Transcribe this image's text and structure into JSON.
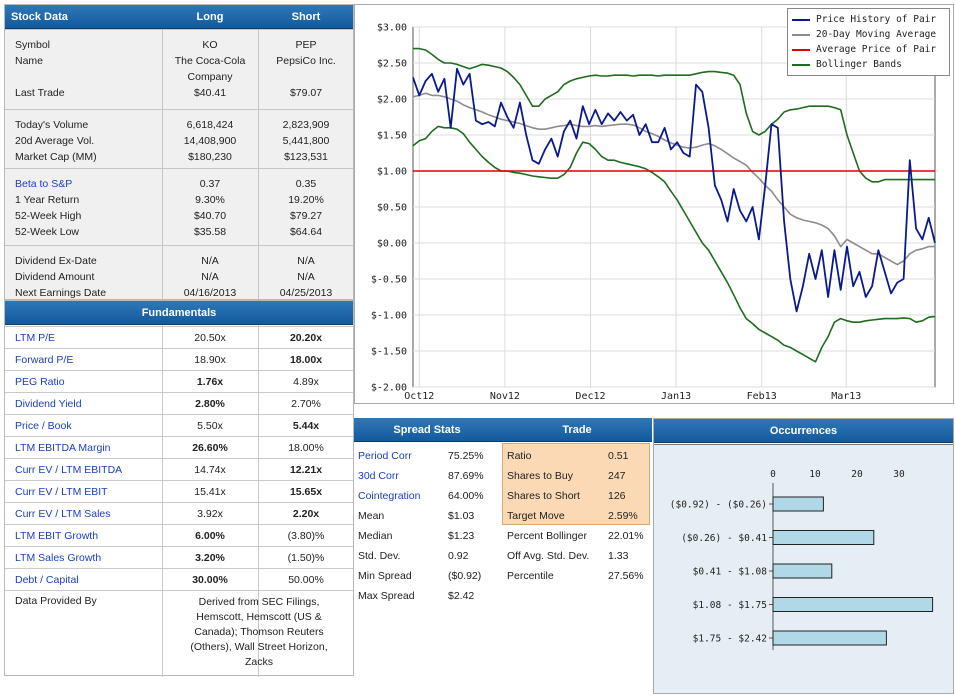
{
  "stock_data": {
    "header": {
      "title": "Stock Data",
      "long": "Long",
      "short": "Short"
    },
    "groups": [
      {
        "rows": [
          {
            "label": "Symbol",
            "long": "KO",
            "short": "PEP",
            "link": false
          },
          {
            "label": "Name",
            "long": "The Coca-Cola",
            "short": "PepsiCo Inc.",
            "link": false
          },
          {
            "label": "",
            "long": "Company",
            "short": "",
            "link": false
          },
          {
            "label": "Last Trade",
            "long": "$40.41",
            "short": "$79.07",
            "link": false
          }
        ]
      },
      {
        "rows": [
          {
            "label": "Today's Volume",
            "long": "6,618,424",
            "short": "2,823,909",
            "link": false
          },
          {
            "label": "20d Average Vol.",
            "long": "14,408,900",
            "short": "5,441,800",
            "link": false
          },
          {
            "label": "Market Cap (MM)",
            "long": "$180,230",
            "short": "$123,531",
            "link": false
          }
        ]
      },
      {
        "rows": [
          {
            "label": "Beta to S&P",
            "long": "0.37",
            "short": "0.35",
            "link": true
          },
          {
            "label": "1 Year Return",
            "long": "9.30%",
            "short": "19.20%",
            "link": false
          },
          {
            "label": "52-Week High",
            "long": "$40.70",
            "short": "$79.27",
            "link": false
          },
          {
            "label": "52-Week Low",
            "long": "$35.58",
            "short": "$64.64",
            "link": false
          }
        ]
      },
      {
        "rows": [
          {
            "label": "Dividend Ex-Date",
            "long": "N/A",
            "short": "N/A",
            "link": false
          },
          {
            "label": "Dividend Amount",
            "long": "N/A",
            "short": "N/A",
            "link": false
          },
          {
            "label": "Next Earnings Date",
            "long": "04/16/2013",
            "short": "04/25/2013",
            "link": false
          }
        ]
      }
    ]
  },
  "fundamentals": {
    "title": "Fundamentals",
    "rows": [
      {
        "label": "LTM P/E",
        "long": "20.50x",
        "short": "20.20x",
        "bold": "short"
      },
      {
        "label": "Forward P/E",
        "long": "18.90x",
        "short": "18.00x",
        "bold": "short"
      },
      {
        "label": "PEG Ratio",
        "long": "1.76x",
        "short": "4.89x",
        "bold": "long"
      },
      {
        "label": "Dividend Yield",
        "long": "2.80%",
        "short": "2.70%",
        "bold": "long"
      },
      {
        "label": "Price / Book",
        "long": "5.50x",
        "short": "5.44x",
        "bold": "short"
      },
      {
        "label": "LTM EBITDA Margin",
        "long": "26.60%",
        "short": "18.00%",
        "bold": "long"
      },
      {
        "label": "Curr EV / LTM EBITDA",
        "long": "14.74x",
        "short": "12.21x",
        "bold": "short"
      },
      {
        "label": "Curr EV / LTM EBIT",
        "long": "15.41x",
        "short": "15.65x",
        "bold": "short"
      },
      {
        "label": "Curr EV / LTM Sales",
        "long": "3.92x",
        "short": "2.20x",
        "bold": "short"
      },
      {
        "label": "LTM EBIT Growth",
        "long": "6.00%",
        "short": "(3.80)%",
        "bold": "long"
      },
      {
        "label": "LTM Sales Growth",
        "long": "3.20%",
        "short": "(1.50)%",
        "bold": "long"
      },
      {
        "label": "Debt / Capital",
        "long": "30.00%",
        "short": "50.00%",
        "bold": "long"
      }
    ],
    "provided_label": "Data Provided By",
    "provided_lines": [
      "Derived from SEC Filings,",
      "Hemscott, Hemscott (US &",
      "Canada); Thomson Reuters",
      "(Others), Wall Street Horizon,",
      "Zacks"
    ]
  },
  "chart_data": [
    {
      "type": "line",
      "x_ticks": [
        "Oct12",
        "Nov12",
        "Dec12",
        "Jan13",
        "Feb13",
        "Mar13"
      ],
      "y_ticks": [
        "$3.00",
        "$2.50",
        "$2.00",
        "$1.50",
        "$1.00",
        "$0.50",
        "$0.00",
        "$-0.50",
        "$-1.00",
        "$-1.50",
        "$-2.00"
      ],
      "ylim": [
        -2.0,
        3.0
      ],
      "grid": true,
      "legend_position": "top-right",
      "series": [
        {
          "name": "Price History of Pair",
          "color": "#0a1a8c",
          "values": [
            2.3,
            2.05,
            2.25,
            2.35,
            2.1,
            2.28,
            1.6,
            2.42,
            2.2,
            2.35,
            1.7,
            1.65,
            1.68,
            1.62,
            1.95,
            1.75,
            1.6,
            1.95,
            1.5,
            1.15,
            1.1,
            1.3,
            1.45,
            1.2,
            1.55,
            1.7,
            1.45,
            1.9,
            1.65,
            1.85,
            1.65,
            1.8,
            1.7,
            1.82,
            1.7,
            1.78,
            1.5,
            1.65,
            1.4,
            1.4,
            1.6,
            1.3,
            1.4,
            1.25,
            1.2,
            2.2,
            2.1,
            1.6,
            0.8,
            0.6,
            0.3,
            0.75,
            0.45,
            0.3,
            0.5,
            0.05,
            0.8,
            1.65,
            1.6,
            0.3,
            -0.5,
            -0.95,
            -0.6,
            -0.15,
            -0.5,
            -0.1,
            -0.75,
            -0.1,
            -0.65,
            -0.05,
            -0.6,
            -0.4,
            -0.75,
            -0.6,
            -0.1,
            -0.4,
            -0.7,
            -0.55,
            -0.5,
            1.15,
            0.2,
            0.05,
            0.35,
            0.0
          ]
        },
        {
          "name": "20-Day Moving Average",
          "color": "#8c8c8c",
          "values": [
            2.03,
            2.05,
            2.08,
            2.05,
            2.05,
            2.03,
            2.0,
            1.97,
            1.92,
            1.88,
            1.85,
            1.82,
            1.78,
            1.75,
            1.72,
            1.7,
            1.68,
            1.66,
            1.63,
            1.6,
            1.58,
            1.58,
            1.6,
            1.62,
            1.63,
            1.65,
            1.63,
            1.62,
            1.62,
            1.63,
            1.62,
            1.63,
            1.64,
            1.65,
            1.65,
            1.64,
            1.6,
            1.55,
            1.52,
            1.48,
            1.43,
            1.39,
            1.36,
            1.33,
            1.32,
            1.33,
            1.36,
            1.38,
            1.35,
            1.3,
            1.24,
            1.18,
            1.13,
            1.08,
            0.98,
            0.9,
            0.8,
            0.72,
            0.6,
            0.5,
            0.4,
            0.35,
            0.32,
            0.3,
            0.28,
            0.25,
            0.2,
            0.1,
            -0.05,
            0.05,
            0.0,
            -0.05,
            -0.1,
            -0.15,
            -0.15,
            -0.2,
            -0.25,
            -0.3,
            -0.25,
            -0.15,
            -0.1,
            -0.08,
            -0.05,
            -0.05
          ]
        },
        {
          "name": "Average Price of Pair",
          "color": "#e00000",
          "values": [
            1.0,
            1.0
          ]
        },
        {
          "name": "Bollinger Bands",
          "color": "#1f6b1f",
          "upper": [
            2.7,
            2.7,
            2.68,
            2.62,
            2.55,
            2.5,
            2.5,
            2.48,
            2.45,
            2.42,
            2.45,
            2.48,
            2.47,
            2.45,
            2.43,
            2.38,
            2.3,
            2.2,
            2.05,
            1.9,
            1.9,
            2.0,
            2.05,
            2.1,
            2.2,
            2.25,
            2.28,
            2.3,
            2.32,
            2.33,
            2.32,
            2.32,
            2.33,
            2.33,
            2.33,
            2.32,
            2.33,
            2.33,
            2.33,
            2.32,
            2.33,
            2.33,
            2.33,
            2.33,
            2.33,
            2.35,
            2.37,
            2.38,
            2.38,
            2.37,
            2.36,
            2.33,
            2.2,
            1.8,
            1.55,
            1.5,
            1.55,
            1.65,
            1.72,
            1.82,
            1.85,
            1.86,
            1.88,
            1.9,
            1.9,
            1.9,
            1.9,
            1.88,
            1.85,
            1.5,
            1.25,
            1.0,
            0.9,
            0.85,
            0.85,
            0.88,
            0.88,
            0.88,
            0.88,
            0.88,
            0.88,
            0.88,
            0.88,
            0.88
          ],
          "lower": [
            1.35,
            1.42,
            1.45,
            1.55,
            1.62,
            1.6,
            1.6,
            1.58,
            1.52,
            1.4,
            1.3,
            1.2,
            1.12,
            1.05,
            1.0,
            1.0,
            0.98,
            0.97,
            0.95,
            0.93,
            0.92,
            0.91,
            0.9,
            0.9,
            0.95,
            1.05,
            1.25,
            1.4,
            1.38,
            1.3,
            1.2,
            1.15,
            1.15,
            1.12,
            1.1,
            1.08,
            1.06,
            1.03,
            0.98,
            0.92,
            0.85,
            0.72,
            0.6,
            0.45,
            0.3,
            0.15,
            0.0,
            -0.1,
            -0.25,
            -0.4,
            -0.55,
            -0.72,
            -0.9,
            -1.05,
            -1.12,
            -1.2,
            -1.25,
            -1.3,
            -1.35,
            -1.42,
            -1.45,
            -1.5,
            -1.55,
            -1.6,
            -1.65,
            -1.45,
            -1.3,
            -1.1,
            -1.05,
            -1.08,
            -1.1,
            -1.1,
            -1.08,
            -1.07,
            -1.06,
            -1.05,
            -1.05,
            -1.05,
            -1.04,
            -1.05,
            -1.1,
            -1.08,
            -1.03,
            -1.02
          ]
        }
      ]
    },
    {
      "type": "bar",
      "orientation": "horizontal",
      "title": "Occurrences",
      "categories": [
        "($0.92) - ($0.26)",
        "($0.26) - $0.41",
        "$0.41 - $1.08",
        "$1.08 - $1.75",
        "$1.75 - $2.42"
      ],
      "values": [
        12,
        24,
        14,
        38,
        27
      ],
      "x_ticks": [
        "0",
        "10",
        "20",
        "30"
      ],
      "xlim": [
        0,
        40
      ]
    }
  ],
  "spread_stats": {
    "title": "Spread Stats",
    "rows": [
      {
        "label": "Period Corr",
        "value": "75.25%",
        "link": true
      },
      {
        "label": "30d Corr",
        "value": "87.69%",
        "link": true
      },
      {
        "label": "Cointegration",
        "value": "64.00%",
        "link": true
      },
      {
        "label": "Mean",
        "value": "$1.03",
        "link": false
      },
      {
        "label": "Median",
        "value": "$1.23",
        "link": false
      },
      {
        "label": "Std. Dev.",
        "value": "0.92",
        "link": false
      },
      {
        "label": "Min Spread",
        "value": "($0.92)",
        "link": false
      },
      {
        "label": "Max Spread",
        "value": "$2.42",
        "link": false
      }
    ]
  },
  "trade": {
    "title": "Trade",
    "rows": [
      {
        "label": "Ratio",
        "value": "0.51"
      },
      {
        "label": "Shares to Buy",
        "value": "247"
      },
      {
        "label": "Shares to Short",
        "value": "126"
      },
      {
        "label": "Target Move",
        "value": "2.59%"
      },
      {
        "label": "Percent Bollinger",
        "value": "22.01%"
      },
      {
        "label": "Off Avg. Std. Dev.",
        "value": "1.33"
      },
      {
        "label": "Percentile",
        "value": "27.56%"
      }
    ]
  },
  "colors": {
    "header": "#1f6aa8",
    "trade_highlight": "#fbd9b5",
    "bar_fill": "#b0d8e6",
    "link": "#1a3fbf"
  }
}
